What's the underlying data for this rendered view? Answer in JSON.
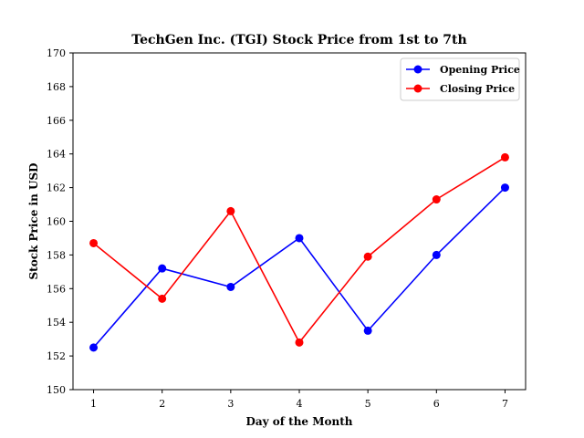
{
  "chart_data": {
    "type": "line",
    "title": "TechGen Inc. (TGI) Stock Price from 1st to 7th",
    "xlabel": "Day of the Month",
    "ylabel": "Stock Price in USD",
    "x": [
      1,
      2,
      3,
      4,
      5,
      6,
      7
    ],
    "xticks": [
      "1",
      "2",
      "3",
      "4",
      "5",
      "6",
      "7"
    ],
    "yticks": [
      "150",
      "152",
      "154",
      "156",
      "158",
      "160",
      "162",
      "164",
      "166",
      "168",
      "170"
    ],
    "ylim": [
      150,
      170
    ],
    "xlim": [
      0.7,
      7.3
    ],
    "grid": false,
    "legend_position": "top-right",
    "series": [
      {
        "name": "Opening Price",
        "color": "#0000ff",
        "values": [
          152.5,
          157.2,
          156.1,
          159.0,
          153.5,
          158.0,
          162.0
        ]
      },
      {
        "name": "Closing Price",
        "color": "#ff0000",
        "values": [
          158.7,
          155.4,
          160.6,
          152.8,
          157.9,
          161.3,
          163.8
        ]
      }
    ]
  }
}
